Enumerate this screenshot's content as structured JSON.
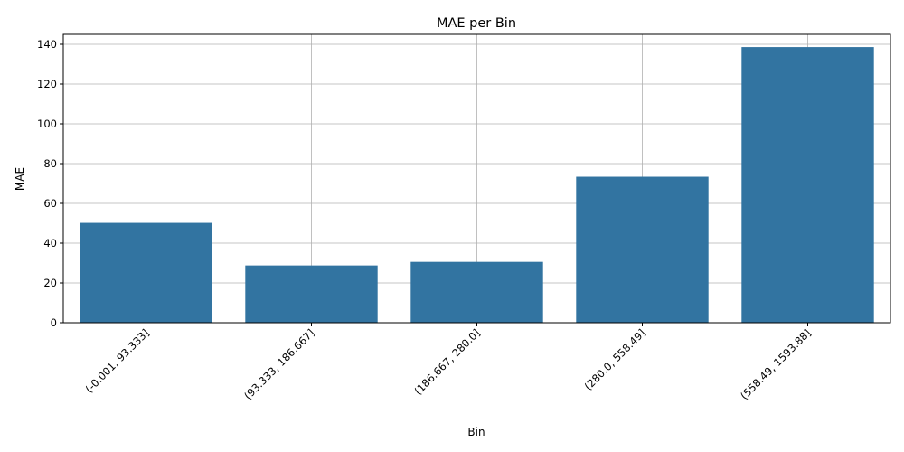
{
  "chart_data": {
    "type": "bar",
    "title": "MAE per Bin",
    "xlabel": "Bin",
    "ylabel": "MAE",
    "categories": [
      "(-0.001, 93.333]",
      "(93.333, 186.667]",
      "(186.667, 280.0]",
      "(280.0, 558.49]",
      "(558.49, 1593.88]"
    ],
    "values": [
      50.2,
      28.8,
      30.6,
      73.4,
      138.6
    ],
    "ylim": [
      0,
      145
    ],
    "yticks": [
      0,
      20,
      40,
      60,
      80,
      100,
      120,
      140
    ],
    "grid": true,
    "bar_color": "#3274a1",
    "grid_color": "#b0b0b0"
  }
}
